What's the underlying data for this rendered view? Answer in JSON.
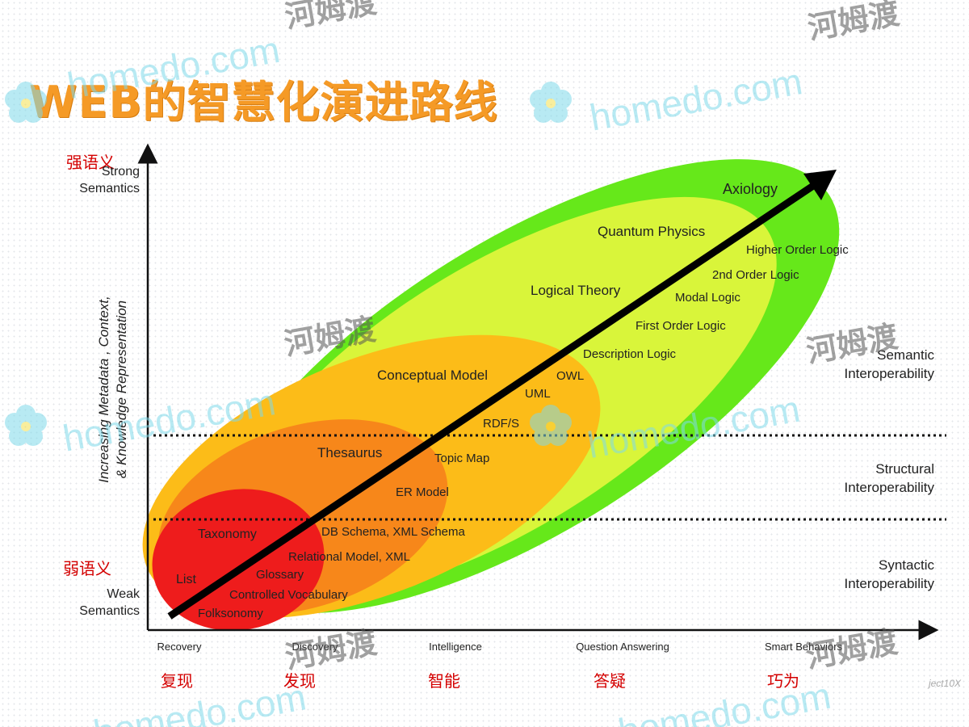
{
  "title": "WEB的智慧化演进路线",
  "y_axis": {
    "top_cn": "强语义",
    "top_en_1": "Strong",
    "top_en_2": "Semantics",
    "bottom_cn": "弱语义",
    "bottom_en_1": "Weak",
    "bottom_en_2": "Semantics",
    "rotated_1": "Increasing Metadata , Context,",
    "rotated_2": "& Knowledge Representation"
  },
  "x_axis": {
    "ticks_en": [
      "Recovery",
      "Discovery",
      "Intelligence",
      "Question Answering",
      "Smart Behaviors"
    ],
    "ticks_cn": [
      "复现",
      "发现",
      "智能",
      "答疑",
      "巧为"
    ]
  },
  "bands": {
    "semantic_1": "Semantic",
    "semantic_2": "Interoperability",
    "structural_1": "Structural",
    "structural_2": "Interoperability",
    "syntactic_1": "Syntactic",
    "syntactic_2": "Interoperability"
  },
  "regions": {
    "axiology": "Axiology",
    "quantum": "Quantum Physics",
    "logical": "Logical Theory",
    "conceptual": "Conceptual Model",
    "thesaurus": "Thesaurus",
    "taxonomy": "Taxonomy",
    "list": "List"
  },
  "items": {
    "higher_order": "Higher Order Logic",
    "second_order": "2nd Order Logic",
    "modal": "Modal Logic",
    "first_order": "First Order Logic",
    "description": "Description Logic",
    "owl": "OWL",
    "uml": "UML",
    "rdfs": "RDF/S",
    "topic_map": "Topic Map",
    "er_model": "ER Model",
    "db_schema": "DB Schema, XML Schema",
    "relational": "Relational Model, XML",
    "glossary": "Glossary",
    "controlled": "Controlled Vocabulary",
    "folksonomy": "Folksonomy"
  },
  "credit": "ject10X",
  "watermark": {
    "latin_1": "homedo.com",
    "cn": "河姆渡"
  },
  "colors": {
    "title": "#f59a26",
    "outer_green": "#66e81a",
    "yellow_green": "#d9f53a",
    "yellow_orange": "#fcbc18",
    "orange": "#f7871a",
    "red": "#ee1c1c",
    "cn_label": "#d40000"
  }
}
